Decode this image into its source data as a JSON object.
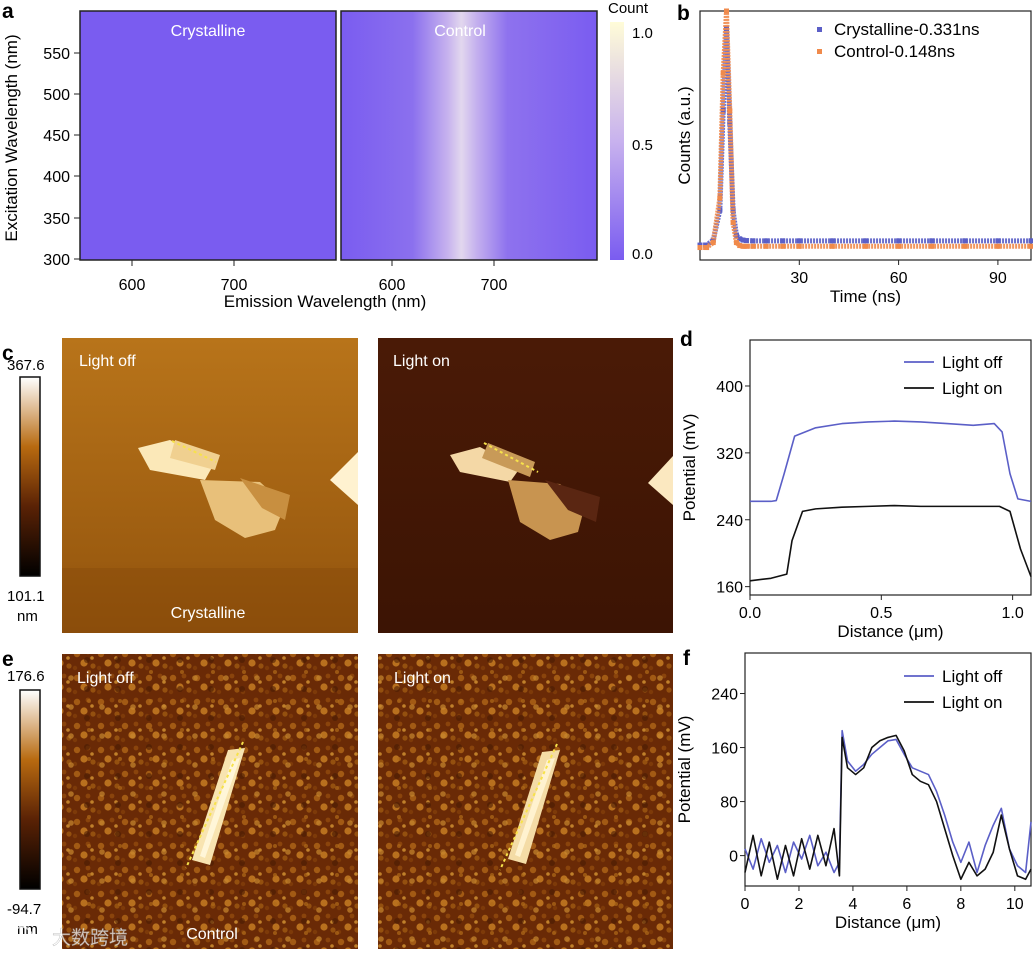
{
  "panel_labels": {
    "a": "a",
    "b": "b",
    "c": "c",
    "d": "d",
    "e": "e",
    "f": "f"
  },
  "colors": {
    "blue": "#5b5fc7",
    "orange": "#f08a4b",
    "black": "#111111",
    "map_low": "#7b5cf0",
    "map_mid": "#c9b4f0",
    "map_high": "#fffbd8"
  },
  "panel_a": {
    "left_title": "Crystalline",
    "right_title": "Control",
    "ylabel": "Excitation Wavelength (nm)",
    "xlabel": "Emission Wavelength (nm)",
    "yticks": [
      "550",
      "500",
      "450",
      "400",
      "350",
      "300"
    ],
    "xticks_left": [
      "600",
      "700"
    ],
    "xticks_right": [
      "600",
      "700"
    ],
    "colorbar_title": "Count",
    "colorbar_ticks": [
      "1.0",
      "0.5",
      "0.0"
    ]
  },
  "panel_c": {
    "title_left": "Light off",
    "title_right": "Light on",
    "caption": "Crystalline",
    "scale_max": "367.6",
    "scale_min": "101.1",
    "scale_unit": "nm"
  },
  "panel_e": {
    "title_left": "Light off",
    "title_right": "Light on",
    "caption": "Control",
    "scale_max": "176.6",
    "scale_min": "-94.7",
    "scale_unit": "nm"
  },
  "watermark": "大数跨境",
  "chart_data": [
    {
      "id": "b",
      "type": "scatter",
      "title": "",
      "xlabel": "Time  (ns)",
      "ylabel": "Counts  (a.u.)",
      "xlim": [
        0,
        100
      ],
      "ylim": [
        0,
        1
      ],
      "xticks": [
        30,
        60,
        90
      ],
      "legend_position": "top-right",
      "series": [
        {
          "name": "Crystalline-0.331ns",
          "color": "#5b5fc7",
          "x": [
            0,
            2,
            4,
            6,
            7,
            8,
            9,
            10,
            11,
            12,
            13,
            14,
            16,
            20,
            25,
            30,
            40,
            50,
            60,
            70,
            80,
            90,
            100
          ],
          "y": [
            0.06,
            0.06,
            0.08,
            0.2,
            0.6,
            0.93,
            0.55,
            0.2,
            0.1,
            0.085,
            0.08,
            0.078,
            0.077,
            0.077,
            0.077,
            0.077,
            0.077,
            0.077,
            0.077,
            0.077,
            0.077,
            0.077,
            0.077
          ]
        },
        {
          "name": "Control-0.148ns",
          "color": "#f08a4b",
          "x": [
            0,
            2,
            4,
            6,
            7,
            8,
            9,
            10,
            11,
            12,
            13,
            14,
            16,
            20,
            25,
            30,
            40,
            50,
            60,
            70,
            80,
            90,
            100
          ],
          "y": [
            0.05,
            0.05,
            0.07,
            0.25,
            0.75,
            1.0,
            0.6,
            0.15,
            0.07,
            0.058,
            0.055,
            0.055,
            0.055,
            0.055,
            0.055,
            0.055,
            0.055,
            0.055,
            0.055,
            0.055,
            0.055,
            0.055,
            0.055
          ]
        }
      ]
    },
    {
      "id": "d",
      "type": "line",
      "xlabel": "Distance (μm)",
      "ylabel": "Potential  (mV)",
      "xlim": [
        0,
        1.07
      ],
      "ylim": [
        150,
        455
      ],
      "xticks": [
        "0.0",
        "0.5",
        "1.0"
      ],
      "yticks": [
        "160",
        "240",
        "320",
        "400"
      ],
      "legend_position": "top-right",
      "series": [
        {
          "name": "Light off",
          "color": "#5b5fc7",
          "x": [
            0,
            0.08,
            0.1,
            0.13,
            0.17,
            0.25,
            0.35,
            0.45,
            0.55,
            0.65,
            0.75,
            0.85,
            0.93,
            0.96,
            0.99,
            1.02,
            1.07
          ],
          "y": [
            262,
            262,
            263,
            295,
            340,
            350,
            355,
            357,
            358,
            357,
            355,
            353,
            355,
            345,
            295,
            265,
            262
          ]
        },
        {
          "name": "Light on",
          "color": "#111111",
          "x": [
            0,
            0.08,
            0.14,
            0.16,
            0.2,
            0.25,
            0.35,
            0.45,
            0.55,
            0.65,
            0.75,
            0.85,
            0.95,
            0.99,
            1.03,
            1.07
          ],
          "y": [
            167,
            170,
            175,
            215,
            250,
            253,
            255,
            256,
            257,
            256,
            256,
            256,
            256,
            250,
            205,
            172
          ]
        }
      ]
    },
    {
      "id": "f",
      "type": "line",
      "xlabel": "Distance (μm)",
      "ylabel": "Potential  (mV)",
      "xlim": [
        0,
        10.6
      ],
      "ylim": [
        -45,
        300
      ],
      "xticks": [
        "0",
        "2",
        "4",
        "6",
        "8",
        "10"
      ],
      "yticks": [
        "0",
        "80",
        "160",
        "240"
      ],
      "legend_position": "top-right",
      "series": [
        {
          "name": "Light  off",
          "color": "#5b5fc7",
          "x": [
            0,
            0.3,
            0.6,
            0.9,
            1.2,
            1.5,
            1.8,
            2.1,
            2.4,
            2.7,
            3.0,
            3.3,
            3.5,
            3.6,
            3.8,
            4.1,
            4.4,
            4.7,
            5.0,
            5.3,
            5.6,
            5.9,
            6.2,
            6.5,
            6.8,
            7.1,
            7.4,
            7.7,
            8.0,
            8.3,
            8.6,
            8.9,
            9.2,
            9.5,
            9.8,
            10.1,
            10.4,
            10.6
          ],
          "y": [
            10,
            -20,
            25,
            -10,
            15,
            -25,
            20,
            -5,
            30,
            -15,
            5,
            -25,
            -10,
            185,
            140,
            125,
            135,
            150,
            160,
            170,
            172,
            150,
            130,
            125,
            120,
            95,
            60,
            20,
            -10,
            20,
            -25,
            15,
            45,
            70,
            10,
            -15,
            -25,
            50
          ]
        },
        {
          "name": "Light  on",
          "color": "#111111",
          "x": [
            0,
            0.3,
            0.6,
            0.9,
            1.2,
            1.5,
            1.8,
            2.1,
            2.4,
            2.7,
            3.0,
            3.3,
            3.5,
            3.6,
            3.8,
            4.1,
            4.4,
            4.7,
            5.0,
            5.3,
            5.6,
            5.9,
            6.2,
            6.5,
            6.8,
            7.1,
            7.4,
            7.7,
            8.0,
            8.3,
            8.6,
            8.9,
            9.2,
            9.5,
            9.8,
            10.1,
            10.4,
            10.6
          ],
          "y": [
            -25,
            30,
            -30,
            20,
            -35,
            15,
            -30,
            25,
            -20,
            30,
            -15,
            40,
            -30,
            175,
            130,
            120,
            130,
            160,
            170,
            175,
            178,
            155,
            120,
            110,
            105,
            80,
            40,
            0,
            -35,
            -10,
            -30,
            -20,
            5,
            60,
            10,
            -30,
            -35,
            -20
          ]
        }
      ]
    }
  ]
}
